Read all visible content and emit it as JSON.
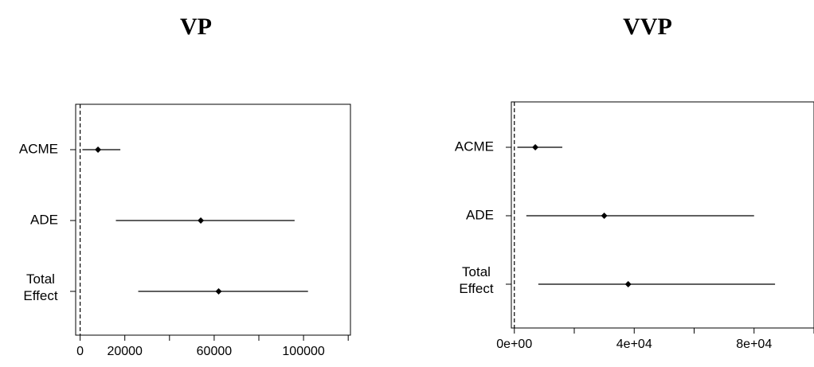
{
  "chart_data": [
    {
      "type": "forest",
      "title": "VP",
      "xlabel": "",
      "ylabel": "",
      "categories": [
        [
          "ACME"
        ],
        [
          "ADE"
        ],
        [
          "Total",
          "Effect"
        ]
      ],
      "estimates": [
        8000,
        54000,
        62000
      ],
      "ci_lower": [
        1000,
        16000,
        26000
      ],
      "ci_upper": [
        18000,
        96000,
        102000
      ],
      "xlim": [
        -2000,
        121000
      ],
      "ticks": [
        0,
        20000,
        40000,
        60000,
        80000,
        100000,
        120000
      ],
      "tick_labels": [
        "0",
        "20000",
        "",
        "60000",
        "",
        "100000",
        ""
      ],
      "reference_line": 0
    },
    {
      "type": "forest",
      "title": "VVP",
      "xlabel": "",
      "ylabel": "",
      "categories": [
        [
          "ACME"
        ],
        [
          "ADE"
        ],
        [
          "Total",
          "Effect"
        ]
      ],
      "estimates": [
        7000,
        30000,
        38000
      ],
      "ci_lower": [
        1000,
        4000,
        8000
      ],
      "ci_upper": [
        16000,
        80000,
        87000
      ],
      "xlim": [
        -1000,
        100000
      ],
      "ticks": [
        0,
        20000,
        40000,
        60000,
        80000,
        100000
      ],
      "tick_labels": [
        "0e+00",
        "",
        "4e+04",
        "",
        "8e+04",
        ""
      ],
      "reference_line": 0
    }
  ]
}
